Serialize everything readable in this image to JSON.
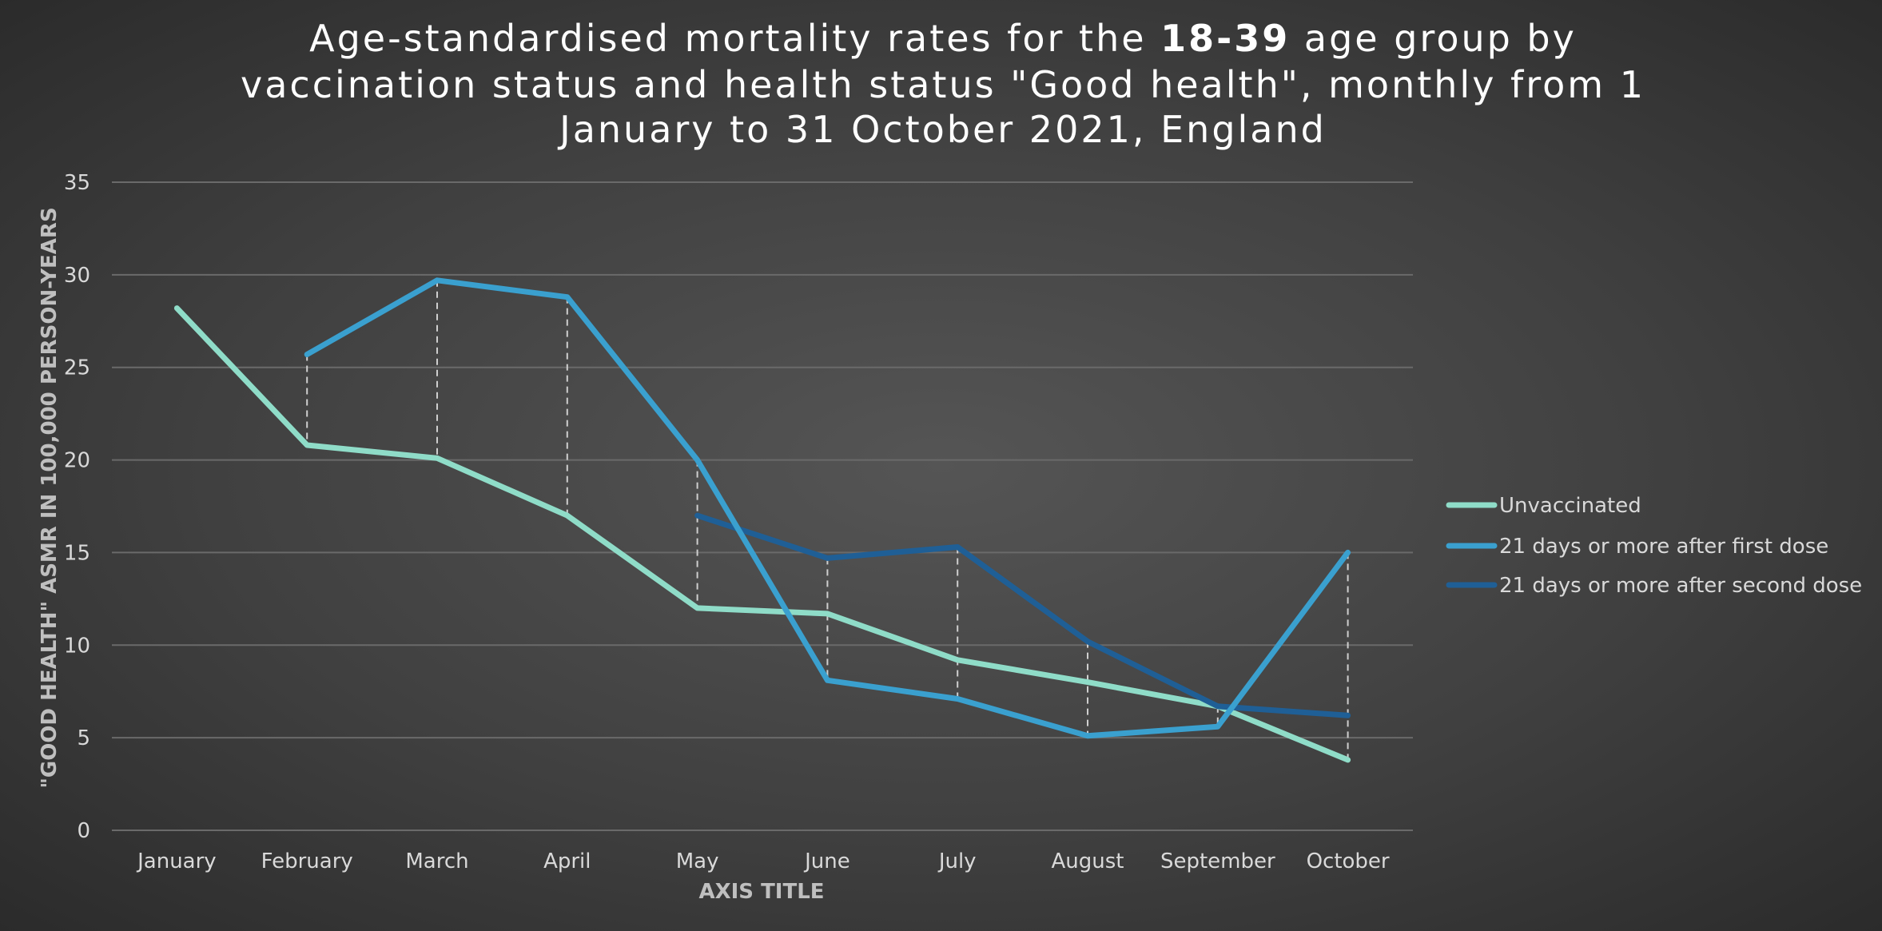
{
  "chart_data": {
    "type": "line",
    "title": {
      "line1_pre": "Age-standardised mortality rates for the ",
      "line1_bold": "18-39",
      "line1_post": " age group by",
      "line2": "vaccination status and health status \"Good health\", monthly from 1",
      "line3": "January to 31 October 2021, England"
    },
    "xlabel": "AXIS TITLE",
    "ylabel": "\"GOOD HEALTH\" ASMR IN 100,000 PERSON-YEARS",
    "categories": [
      "January",
      "February",
      "March",
      "April",
      "May",
      "June",
      "July",
      "August",
      "September",
      "October"
    ],
    "ylim": [
      0,
      35
    ],
    "yticks": [
      "0",
      "5",
      "10",
      "15",
      "20",
      "25",
      "30",
      "35"
    ],
    "grid": true,
    "legend_position": "right",
    "drop_lines": true,
    "series": [
      {
        "name": "Unvaccinated",
        "color": "#8fdcc8",
        "values": [
          28.2,
          20.8,
          20.1,
          17.0,
          12.0,
          11.7,
          9.2,
          8.0,
          6.7,
          3.8
        ]
      },
      {
        "name": "21 days or more after first dose",
        "color": "#3aa0cf",
        "values": [
          null,
          25.7,
          29.7,
          28.8,
          20.0,
          8.1,
          7.1,
          5.1,
          5.6,
          15.0
        ]
      },
      {
        "name": "21 days or more after second dose",
        "color": "#1f5f96",
        "values": [
          null,
          null,
          null,
          null,
          17.0,
          14.7,
          15.3,
          10.2,
          6.7,
          6.2
        ]
      }
    ]
  }
}
